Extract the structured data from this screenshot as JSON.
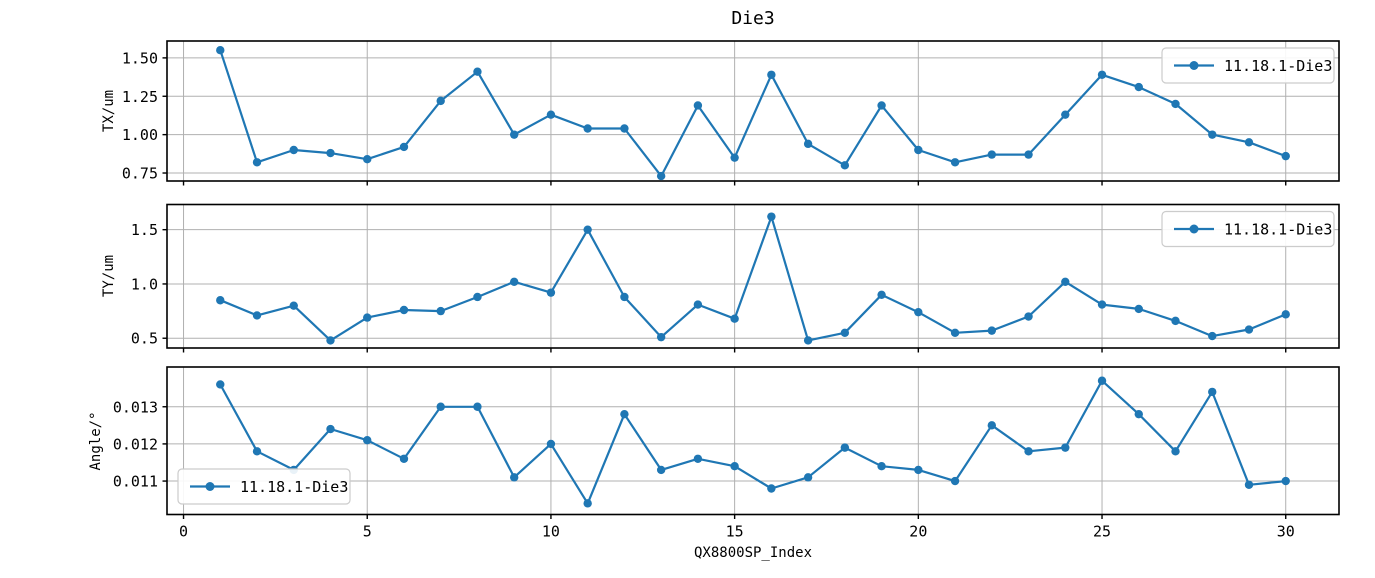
{
  "title": "Die3",
  "xlabel": "QX8800SP_Index",
  "series_name": "11.18.1-Die3",
  "colors": {
    "series": "#1f77b4",
    "grid": "#b0b0b0",
    "spine": "#000000",
    "legend_border": "#cccccc",
    "background": "#ffffff"
  },
  "chart_data": [
    {
      "type": "line",
      "title": "Die3",
      "ylabel": "TX/um",
      "legend": "11.18.1-Die3",
      "legend_position": "upper right",
      "marker": "circle",
      "grid": true,
      "x": [
        1,
        2,
        3,
        4,
        5,
        6,
        7,
        8,
        9,
        10,
        11,
        12,
        13,
        14,
        15,
        16,
        17,
        18,
        19,
        20,
        21,
        22,
        23,
        24,
        25,
        26,
        27,
        28,
        29,
        30
      ],
      "y": [
        1.55,
        0.82,
        0.9,
        0.88,
        0.84,
        0.92,
        1.22,
        1.41,
        1.0,
        1.13,
        1.04,
        1.04,
        0.73,
        1.19,
        0.85,
        1.39,
        0.94,
        0.8,
        1.19,
        0.9,
        0.82,
        0.87,
        0.87,
        1.13,
        1.39,
        1.31,
        1.2,
        1.0,
        0.95,
        0.86
      ],
      "xlim": [
        -0.45,
        31.45
      ],
      "ylim": [
        0.698,
        1.61
      ],
      "xticks": [
        0,
        5,
        10,
        15,
        20,
        25,
        30
      ],
      "yticks": [
        0.75,
        1.0,
        1.25,
        1.5
      ],
      "ytick_labels": [
        "0.75",
        "1.00",
        "1.25",
        "1.50"
      ]
    },
    {
      "type": "line",
      "title": "Die3",
      "ylabel": "TY/um",
      "legend": "11.18.1-Die3",
      "legend_position": "upper right",
      "marker": "circle",
      "grid": true,
      "x": [
        1,
        2,
        3,
        4,
        5,
        6,
        7,
        8,
        9,
        10,
        11,
        12,
        13,
        14,
        15,
        16,
        17,
        18,
        19,
        20,
        21,
        22,
        23,
        24,
        25,
        26,
        27,
        28,
        29,
        30
      ],
      "y": [
        0.85,
        0.71,
        0.8,
        0.48,
        0.69,
        0.76,
        0.75,
        0.88,
        1.02,
        0.92,
        1.5,
        0.88,
        0.51,
        0.81,
        0.68,
        1.62,
        0.48,
        0.55,
        0.9,
        0.74,
        0.55,
        0.57,
        0.7,
        1.02,
        0.81,
        0.77,
        0.66,
        0.52,
        0.58,
        0.72
      ],
      "xlim": [
        -0.45,
        31.45
      ],
      "ylim": [
        0.41,
        1.732
      ],
      "xticks": [
        0,
        5,
        10,
        15,
        20,
        25,
        30
      ],
      "yticks": [
        0.5,
        1.0,
        1.5
      ],
      "ytick_labels": [
        "0.5",
        "1.0",
        "1.5"
      ]
    },
    {
      "type": "line",
      "title": "Die3",
      "ylabel": "Angle/°",
      "legend": "11.18.1-Die3",
      "legend_position": "lower left",
      "marker": "circle",
      "grid": true,
      "x": [
        1,
        2,
        3,
        4,
        5,
        6,
        7,
        8,
        9,
        10,
        11,
        12,
        13,
        14,
        15,
        16,
        17,
        18,
        19,
        20,
        21,
        22,
        23,
        24,
        25,
        26,
        27,
        28,
        29,
        30
      ],
      "y": [
        0.0136,
        0.0118,
        0.0113,
        0.0124,
        0.0121,
        0.0116,
        0.013,
        0.013,
        0.0111,
        0.012,
        0.0104,
        0.0128,
        0.0113,
        0.0116,
        0.0114,
        0.0108,
        0.0111,
        0.0119,
        0.0114,
        0.0113,
        0.011,
        0.0125,
        0.0118,
        0.0119,
        0.0137,
        0.0128,
        0.0118,
        0.0134,
        0.0109,
        0.011
      ],
      "xlim": [
        -0.45,
        31.45
      ],
      "ylim": [
        0.0101,
        0.01407
      ],
      "xticks": [
        0,
        5,
        10,
        15,
        20,
        25,
        30
      ],
      "yticks": [
        0.011,
        0.012,
        0.013
      ],
      "ytick_labels": [
        "0.011",
        "0.012",
        "0.013"
      ]
    }
  ],
  "x_tick_labels": [
    "0",
    "5",
    "10",
    "15",
    "20",
    "25",
    "30"
  ]
}
